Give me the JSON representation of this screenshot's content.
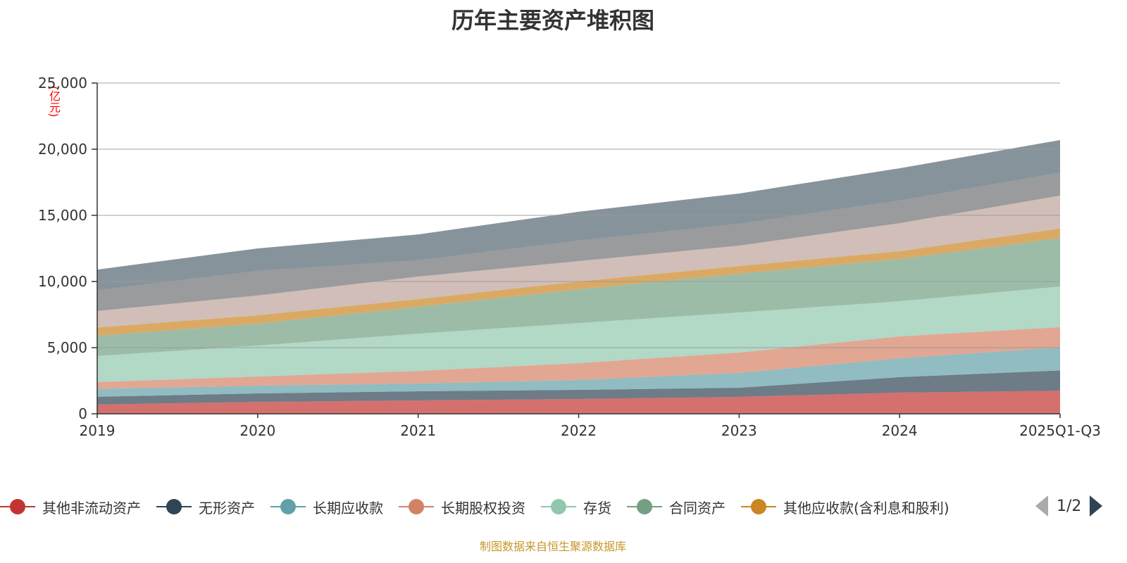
{
  "chart_data": {
    "type": "area",
    "stacked": true,
    "title": "历年主要资产堆积图",
    "ylabel": "(亿元)",
    "xlabel": "",
    "ylim": [
      0,
      25000
    ],
    "yticks": [
      "0",
      "5,000",
      "10,000",
      "15,000",
      "20,000",
      "25,000"
    ],
    "ytick_values": [
      0,
      5000,
      10000,
      15000,
      20000,
      25000
    ],
    "grid": true,
    "categories": [
      "2019",
      "2020",
      "2021",
      "2022",
      "2023",
      "2024",
      "2025Q1-Q3"
    ],
    "series": [
      {
        "name": "其他非流动资产",
        "color": "#c23531",
        "values": [
          700,
          900,
          1010,
          1120,
          1280,
          1600,
          1740
        ]
      },
      {
        "name": "无形资产",
        "color": "#2f4554",
        "values": [
          590,
          640,
          690,
          690,
          690,
          1170,
          1540
        ]
      },
      {
        "name": "长期应收款",
        "color": "#61a0a8",
        "values": [
          590,
          590,
          590,
          740,
          1120,
          1430,
          1740
        ]
      },
      {
        "name": "长期股权投资",
        "color": "#d48265",
        "values": [
          520,
          690,
          950,
          1280,
          1540,
          1650,
          1530
        ]
      },
      {
        "name": "存货",
        "color": "#91c7ae",
        "values": [
          1970,
          2340,
          2820,
          3030,
          3030,
          2660,
          3070
        ]
      },
      {
        "name": "合同资产",
        "color": "#749f83",
        "values": [
          1530,
          1650,
          2030,
          2550,
          2930,
          3190,
          3660
        ]
      },
      {
        "name": "其他应收款(含利息和股利)",
        "color": "#ca8622",
        "values": [
          620,
          640,
          580,
          590,
          580,
          590,
          730
        ]
      },
      {
        "name": "",
        "color": "#bda29a",
        "values": [
          1250,
          1490,
          1700,
          1540,
          1540,
          2120,
          2480
        ]
      },
      {
        "name": "",
        "color": "#6e7074",
        "values": [
          1570,
          1860,
          1230,
          1550,
          1650,
          1710,
          1740
        ]
      },
      {
        "name": "",
        "color": "#546570",
        "values": [
          1560,
          1700,
          1960,
          2180,
          2290,
          2440,
          2460
        ]
      }
    ],
    "legend_position": "bottom"
  },
  "legend": {
    "page": "1/2",
    "visible_count": 7
  },
  "footer": "制图数据来自恒生聚源数据库"
}
